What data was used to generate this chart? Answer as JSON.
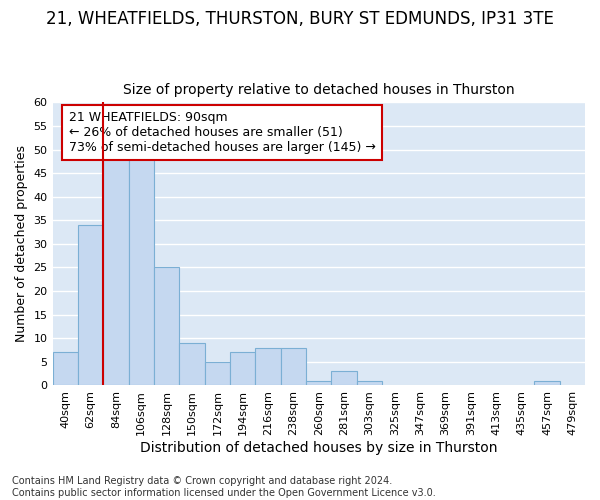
{
  "title1": "21, WHEATFIELDS, THURSTON, BURY ST EDMUNDS, IP31 3TE",
  "title2": "Size of property relative to detached houses in Thurston",
  "xlabel": "Distribution of detached houses by size in Thurston",
  "ylabel": "Number of detached properties",
  "footer": "Contains HM Land Registry data © Crown copyright and database right 2024.\nContains public sector information licensed under the Open Government Licence v3.0.",
  "categories": [
    "40sqm",
    "62sqm",
    "84sqm",
    "106sqm",
    "128sqm",
    "150sqm",
    "172sqm",
    "194sqm",
    "216sqm",
    "238sqm",
    "260sqm",
    "281sqm",
    "303sqm",
    "325sqm",
    "347sqm",
    "369sqm",
    "391sqm",
    "413sqm",
    "435sqm",
    "457sqm",
    "479sqm"
  ],
  "values": [
    7,
    34,
    49,
    49,
    25,
    9,
    5,
    7,
    8,
    8,
    1,
    3,
    1,
    0,
    0,
    0,
    0,
    0,
    0,
    1,
    0
  ],
  "bar_color": "#c5d8f0",
  "bar_edge_color": "#7bafd4",
  "property_label": "21 WHEATFIELDS: 90sqm",
  "annotation_line1": "← 26% of detached houses are smaller (51)",
  "annotation_line2": "73% of semi-detached houses are larger (145) →",
  "vline_color": "#cc0000",
  "ylim": [
    0,
    60
  ],
  "yticks": [
    0,
    5,
    10,
    15,
    20,
    25,
    30,
    35,
    40,
    45,
    50,
    55,
    60
  ],
  "plot_bg_color": "#dce8f5",
  "fig_bg_color": "#ffffff",
  "grid_color": "#ffffff",
  "annotation_box_color": "#ffffff",
  "annotation_border_color": "#cc0000",
  "title1_fontsize": 12,
  "title2_fontsize": 10,
  "xlabel_fontsize": 10,
  "ylabel_fontsize": 9,
  "tick_fontsize": 8,
  "annotation_fontsize": 9,
  "footer_fontsize": 7
}
